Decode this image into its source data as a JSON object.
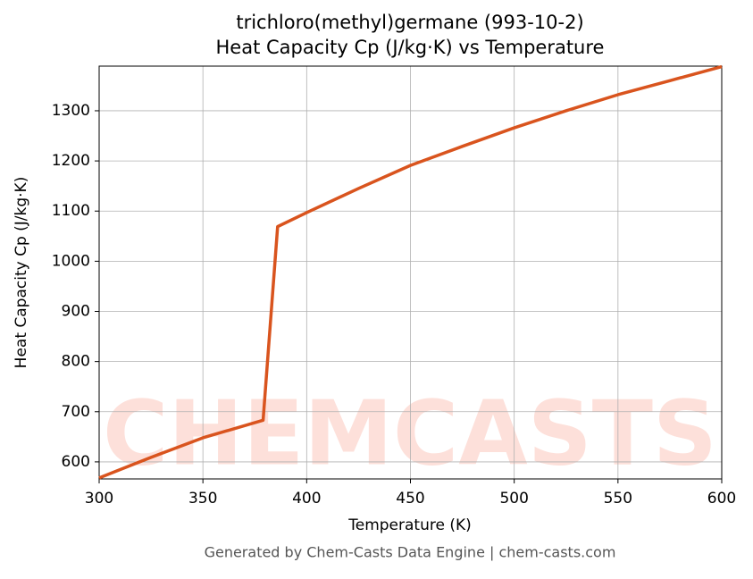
{
  "chart_data": {
    "type": "line",
    "title": "trichloro(methyl)germane (993-10-2)",
    "subtitle": "Heat Capacity Cp (J/kg·K) vs Temperature",
    "x_label": "Temperature (K)",
    "y_label": "Heat Capacity Cp (J/kg·K)",
    "watermark": "CHEMCASTS",
    "footer": "Generated by Chem-Casts Data Engine | chem-casts.com",
    "x": [
      300,
      325,
      350,
      379,
      386,
      400,
      425,
      450,
      475,
      500,
      525,
      550,
      575,
      600
    ],
    "series": [
      {
        "name": "Cp",
        "color": "#d9541e",
        "values": [
          568,
          609,
          648,
          683,
          1069,
          1097,
          1145,
          1191,
          1229,
          1266,
          1300,
          1332,
          1360,
          1388
        ]
      }
    ],
    "xlim": [
      300,
      600
    ],
    "ylim": [
      566,
      1389
    ],
    "xticks": [
      300,
      350,
      400,
      450,
      500,
      550,
      600
    ],
    "yticks": [
      600,
      700,
      800,
      900,
      1000,
      1100,
      1200,
      1300
    ],
    "grid": true
  }
}
